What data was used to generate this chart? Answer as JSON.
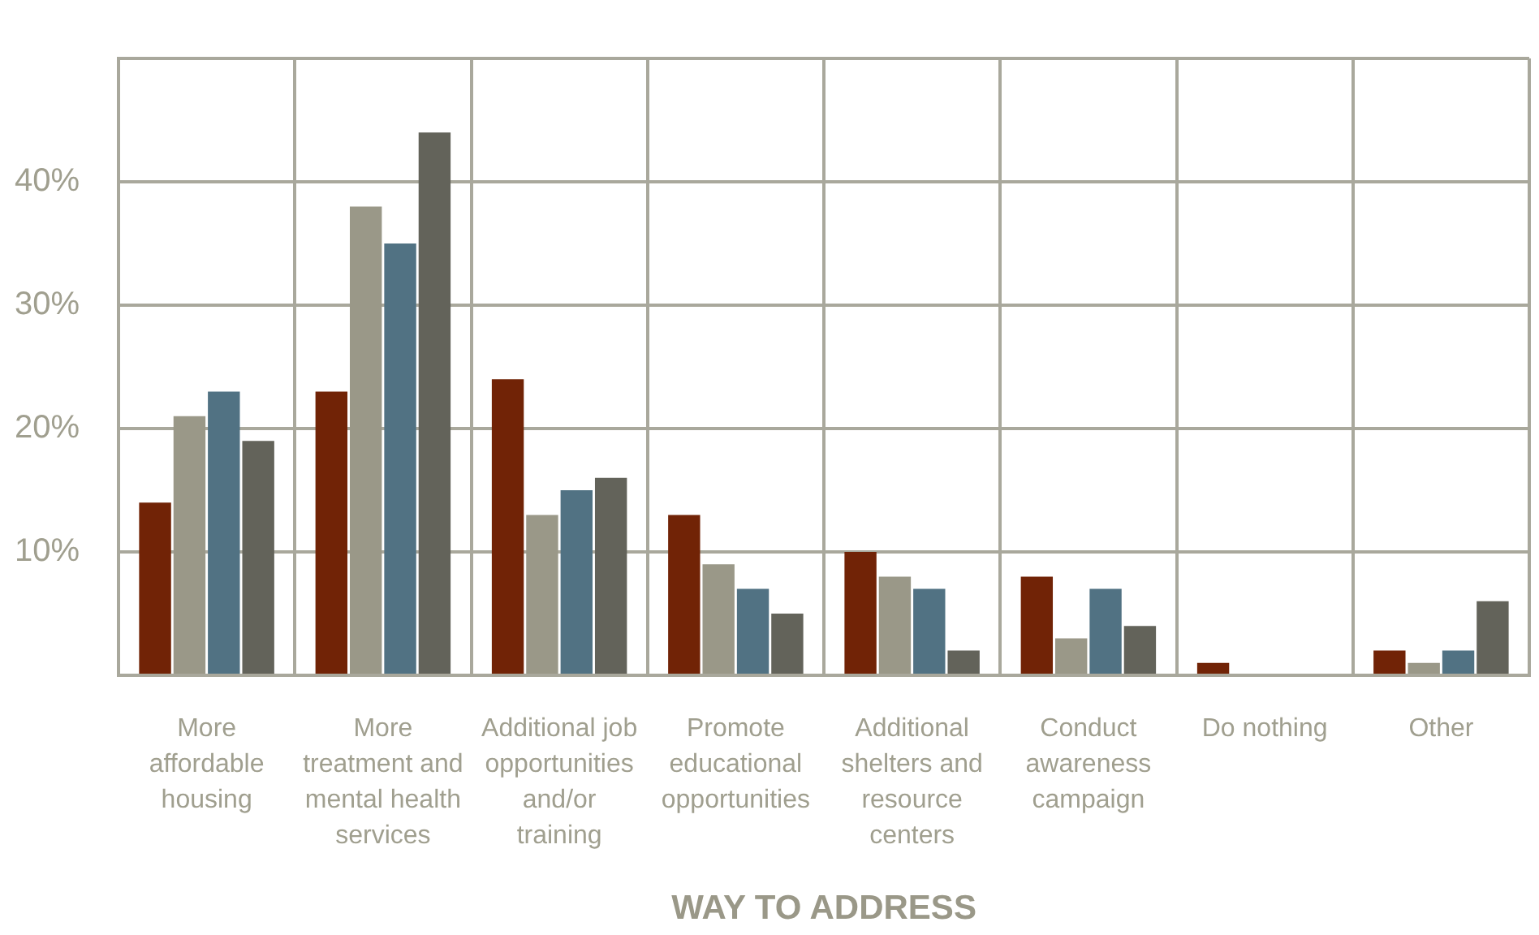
{
  "chart_data": {
    "type": "bar",
    "xlabel": "WAY TO ADDRESS",
    "categories": [
      "More affordable housing",
      "More treatment and mental health services",
      "Additional job opportunities and/or training",
      "Promote educational opportunities",
      "Additional shelters and resource centers",
      "Conduct awareness campaign",
      "Do nothing",
      "Other"
    ],
    "series": [
      {
        "color": "#712306",
        "values": [
          14,
          23,
          24,
          13,
          10,
          8,
          1,
          2
        ]
      },
      {
        "color": "#9a9888",
        "values": [
          21,
          38,
          13,
          9,
          8,
          3,
          0,
          1
        ]
      },
      {
        "color": "#517283",
        "values": [
          23,
          35,
          15,
          7,
          7,
          7,
          0,
          2
        ]
      },
      {
        "color": "#63635a",
        "values": [
          19,
          44,
          16,
          5,
          2,
          4,
          0,
          6
        ]
      }
    ],
    "ylim": [
      0,
      50
    ],
    "yticks": [
      {
        "value": 0,
        "label": null
      },
      {
        "value": 10,
        "label": "10%"
      },
      {
        "value": 20,
        "label": "20%"
      },
      {
        "value": 30,
        "label": "30%"
      },
      {
        "value": 40,
        "label": "40%"
      },
      {
        "value": 50,
        "label": null
      }
    ],
    "grid": true
  }
}
